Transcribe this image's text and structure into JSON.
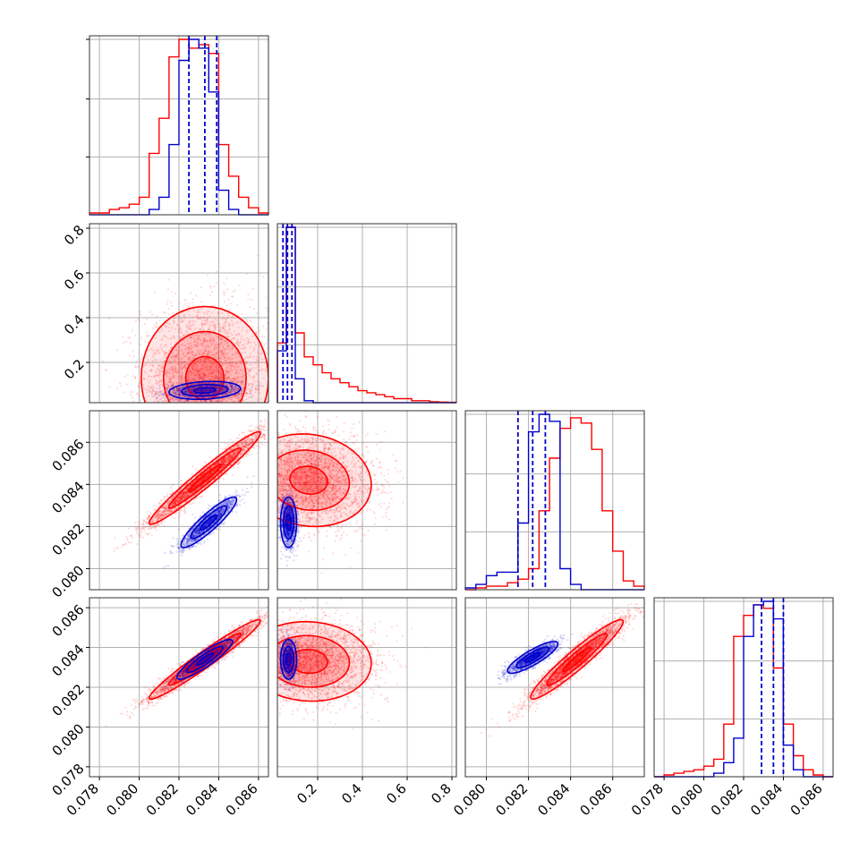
{
  "chart_data": {
    "type": "corner",
    "colors": {
      "series_a": "#ff0000",
      "series_b": "#0000cc"
    },
    "grid": true,
    "parameters": [
      {
        "range": [
          0.0775,
          0.0865
        ],
        "ticks": [
          0.078,
          0.08,
          0.082,
          0.084,
          0.086
        ],
        "tick_labels": [
          "0.078",
          "0.080",
          "0.082",
          "0.084",
          "0.086"
        ]
      },
      {
        "range": [
          0.02,
          0.82
        ],
        "ticks": [
          0.2,
          0.4,
          0.6,
          0.8
        ],
        "tick_labels": [
          "0.2",
          "0.4",
          "0.6",
          "0.8"
        ]
      },
      {
        "range": [
          0.079,
          0.0875
        ],
        "ticks": [
          0.08,
          0.082,
          0.084,
          0.086
        ],
        "tick_labels": [
          "0.080",
          "0.082",
          "0.084",
          "0.086"
        ]
      },
      {
        "range": [
          0.0775,
          0.0865
        ],
        "ticks": [
          0.078,
          0.08,
          0.082,
          0.084,
          0.086
        ],
        "tick_labels": [
          "0.078",
          "0.080",
          "0.082",
          "0.084",
          "0.086"
        ]
      }
    ],
    "histograms": [
      {
        "param": 0,
        "bin_edges": [
          0.0775,
          0.078,
          0.0785,
          0.079,
          0.0795,
          0.08,
          0.0805,
          0.081,
          0.0815,
          0.082,
          0.0825,
          0.083,
          0.0835,
          0.084,
          0.0845,
          0.085,
          0.0855,
          0.086,
          0.0865
        ],
        "series_a": [
          0.01,
          0.01,
          0.03,
          0.04,
          0.06,
          0.1,
          0.35,
          0.55,
          0.9,
          1.0,
          0.95,
          0.97,
          0.92,
          0.4,
          0.22,
          0.1,
          0.04,
          0.01
        ],
        "series_b": [
          0,
          0,
          0,
          0,
          0,
          0,
          0.03,
          0.1,
          0.4,
          0.88,
          1.0,
          0.95,
          0.7,
          0.14,
          0.03,
          0,
          0,
          0
        ],
        "quantiles_b": [
          0.0825,
          0.0833,
          0.0839
        ]
      },
      {
        "param": 1,
        "bin_edges": [
          0.02,
          0.06,
          0.1,
          0.14,
          0.18,
          0.22,
          0.26,
          0.3,
          0.34,
          0.38,
          0.42,
          0.46,
          0.5,
          0.54,
          0.58,
          0.62,
          0.66,
          0.7,
          0.74,
          0.78,
          0.82
        ],
        "series_a": [
          0.3,
          0.88,
          0.35,
          0.23,
          0.19,
          0.15,
          0.12,
          0.1,
          0.08,
          0.06,
          0.05,
          0.04,
          0.03,
          0.02,
          0.02,
          0.01,
          0.01,
          0.005,
          0.003,
          0.002
        ],
        "series_b": [
          0.26,
          0.88,
          0.12,
          0.01,
          0,
          0,
          0,
          0,
          0,
          0,
          0,
          0,
          0,
          0,
          0,
          0,
          0,
          0,
          0,
          0
        ],
        "quantiles_b": [
          0.045,
          0.065,
          0.085
        ]
      },
      {
        "param": 2,
        "bin_edges": [
          0.079,
          0.0795,
          0.08,
          0.0805,
          0.081,
          0.0815,
          0.082,
          0.0825,
          0.083,
          0.0835,
          0.084,
          0.0845,
          0.085,
          0.0855,
          0.086,
          0.0865,
          0.087,
          0.0875
        ],
        "series_a": [
          0,
          0.01,
          0.02,
          0.02,
          0.04,
          0.06,
          0.12,
          0.45,
          0.75,
          0.92,
          0.98,
          0.95,
          0.8,
          0.45,
          0.22,
          0.05,
          0.02
        ],
        "series_b": [
          0.01,
          0.03,
          0.08,
          0.1,
          0.1,
          0.38,
          0.9,
          1.0,
          0.96,
          0.12,
          0.03,
          0,
          0,
          0,
          0,
          0,
          0
        ],
        "quantiles_b": [
          0.0815,
          0.0822,
          0.0828
        ]
      },
      {
        "param": 3,
        "bin_edges": [
          0.0775,
          0.078,
          0.0785,
          0.079,
          0.0795,
          0.08,
          0.0805,
          0.081,
          0.0815,
          0.082,
          0.0825,
          0.083,
          0.0835,
          0.084,
          0.0845,
          0.085,
          0.0855,
          0.086,
          0.0865
        ],
        "series_a": [
          0,
          0.01,
          0.02,
          0.03,
          0.04,
          0.06,
          0.1,
          0.3,
          0.8,
          0.92,
          0.98,
          0.96,
          0.62,
          0.3,
          0.12,
          0.04,
          0.01,
          0
        ],
        "series_b": [
          0,
          0,
          0,
          0,
          0,
          0,
          0.02,
          0.08,
          0.22,
          0.8,
          0.98,
          1.0,
          0.9,
          0.18,
          0.04,
          0,
          0,
          0
        ],
        "quantiles_b": [
          0.0829,
          0.0835,
          0.084
        ]
      }
    ],
    "pairs": [
      {
        "x_param": 0,
        "y_param": 1,
        "series_a": {
          "center": [
            0.0833,
            0.13
          ],
          "spread": [
            0.0016,
            0.16
          ],
          "rho": 0.0,
          "points": 3000
        },
        "series_b": {
          "center": [
            0.0833,
            0.075
          ],
          "spread": [
            0.0009,
            0.02
          ],
          "rho": 0.2,
          "points": 1500
        }
      },
      {
        "x_param": 0,
        "y_param": 2,
        "series_a": {
          "center": [
            0.0833,
            0.0843
          ],
          "spread": [
            0.0014,
            0.0011
          ],
          "rho": 0.97,
          "points": 3000
        },
        "series_b": {
          "center": [
            0.0835,
            0.0822
          ],
          "spread": [
            0.0007,
            0.0006
          ],
          "rho": 0.9,
          "points": 1500
        }
      },
      {
        "x_param": 1,
        "y_param": 2,
        "series_a": {
          "center": [
            0.16,
            0.0842
          ],
          "spread": [
            0.14,
            0.0011
          ],
          "rho": -0.1,
          "points": 3000
        },
        "series_b": {
          "center": [
            0.07,
            0.0822
          ],
          "spread": [
            0.018,
            0.0006
          ],
          "rho": 0.0,
          "points": 1500
        }
      },
      {
        "x_param": 0,
        "y_param": 3,
        "series_a": {
          "center": [
            0.0833,
            0.0834
          ],
          "spread": [
            0.0014,
            0.001
          ],
          "rho": 0.97,
          "points": 3000
        },
        "series_b": {
          "center": [
            0.0833,
            0.0834
          ],
          "spread": [
            0.0007,
            0.0005
          ],
          "rho": 0.9,
          "points": 1500
        }
      },
      {
        "x_param": 1,
        "y_param": 3,
        "series_a": {
          "center": [
            0.16,
            0.0833
          ],
          "spread": [
            0.14,
            0.001
          ],
          "rho": -0.05,
          "points": 3000
        },
        "series_b": {
          "center": [
            0.07,
            0.0834
          ],
          "spread": [
            0.018,
            0.0005
          ],
          "rho": 0.0,
          "points": 1500
        }
      },
      {
        "x_param": 2,
        "y_param": 3,
        "series_a": {
          "center": [
            0.0843,
            0.0834
          ],
          "spread": [
            0.0011,
            0.001
          ],
          "rho": 0.95,
          "points": 3000
        },
        "series_b": {
          "center": [
            0.0822,
            0.0835
          ],
          "spread": [
            0.0006,
            0.0004
          ],
          "rho": 0.85,
          "points": 1500
        }
      }
    ]
  }
}
